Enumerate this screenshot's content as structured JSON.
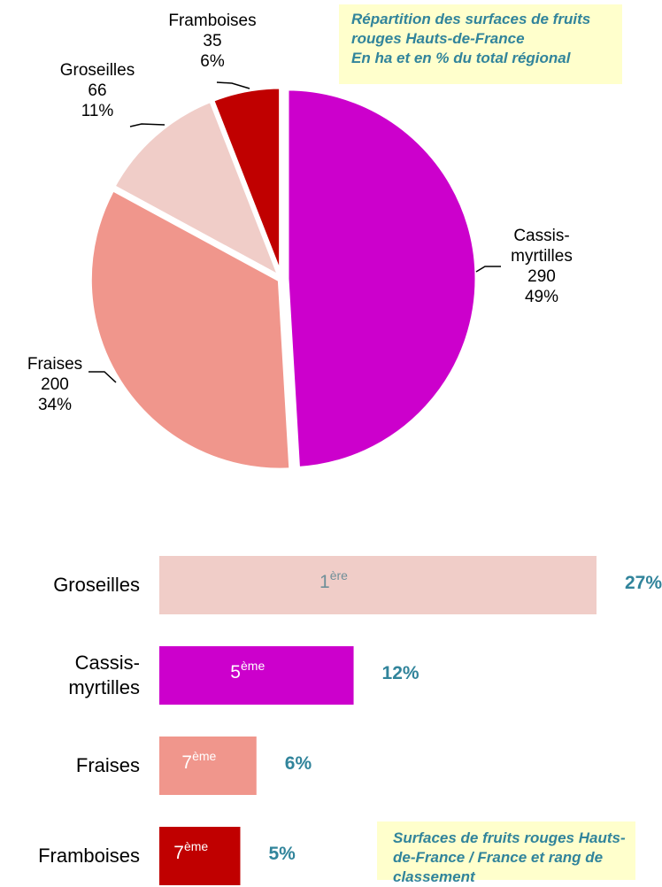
{
  "chart_data": [
    {
      "type": "pie",
      "title": "Répartition des surfaces de fruits rouges Hauts-de-France",
      "subtitle": "En ha et en % du total régional",
      "categories": [
        "Cassis-myrtilles",
        "Fraises",
        "Groseilles",
        "Framboises"
      ],
      "values": [
        290,
        200,
        66,
        35
      ],
      "shares": [
        49,
        34,
        11,
        6
      ],
      "share_labels": [
        "49%",
        "34%",
        "11%",
        "6%"
      ],
      "colors": [
        "#cc00cc",
        "#f0968c",
        "#f0cdc8",
        "#c00000"
      ]
    },
    {
      "type": "bar",
      "orientation": "horizontal",
      "title": "Surfaces de fruits rouges Hauts-de-France / France et rang de classement",
      "categories": [
        "Groseilles",
        "Cassis-myrtilles",
        "Fraises",
        "Framboises"
      ],
      "values": [
        27,
        12,
        6,
        5
      ],
      "value_labels": [
        "27%",
        "12%",
        "6%",
        "5%"
      ],
      "rank_numbers": [
        1,
        5,
        7,
        7
      ],
      "rank_suffixes": [
        "ère",
        "ème",
        "ème",
        "ème"
      ],
      "colors": [
        "#f0cdc8",
        "#cc00cc",
        "#f0968c",
        "#c00000"
      ]
    }
  ]
}
